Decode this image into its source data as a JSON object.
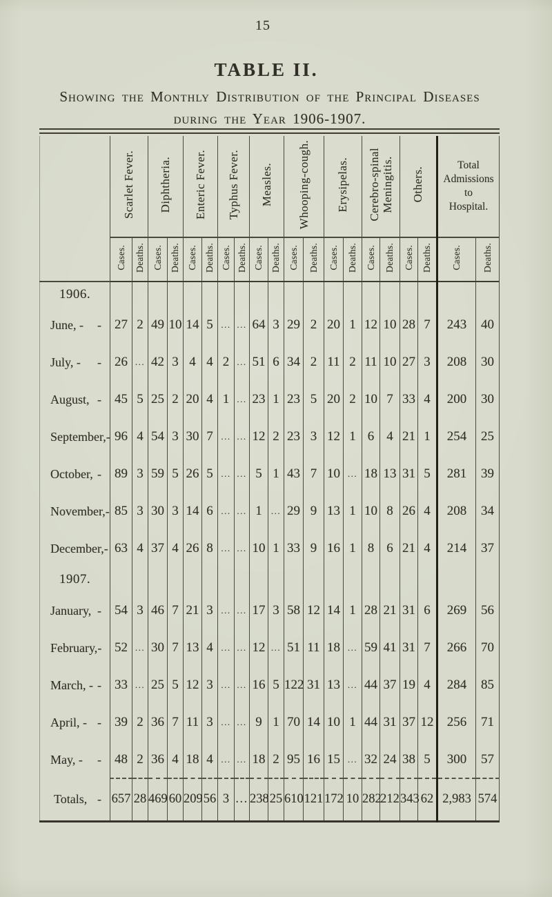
{
  "page": {
    "number": "15"
  },
  "title": "TABLE II.",
  "subtitle_line1": "Showing the Monthly Distribution of the Principal Diseases",
  "subtitle_line2": "during the Year 1906-1907.",
  "table": {
    "diseases": [
      "Scarlet Fever.",
      "Diphtheria.",
      "Enteric Fever.",
      "Typhus Fever.",
      "Measles.",
      "Whooping-cough.",
      "Erysipelas.",
      "Cerebro-spinal\nMeningitis.",
      "Others."
    ],
    "total_header": "Total\nAdmissions\nto\nHospital.",
    "sub_cases": "Cases.",
    "sub_deaths": "Deaths.",
    "row_dash": "-",
    "rows": [
      {
        "type": "section",
        "label": "1906."
      },
      {
        "type": "month",
        "label": "June, -",
        "values": [
          "27",
          "2",
          "49",
          "10",
          "14",
          "5",
          "...",
          "...",
          "64",
          "3",
          "29",
          "2",
          "20",
          "1",
          "12",
          "10",
          "28",
          "7",
          "243",
          "40"
        ]
      },
      {
        "type": "month",
        "label": "July, -",
        "values": [
          "26",
          "...",
          "42",
          "3",
          "4",
          "4",
          "2",
          "...",
          "51",
          "6",
          "34",
          "2",
          "11",
          "2",
          "11",
          "10",
          "27",
          "3",
          "208",
          "30"
        ]
      },
      {
        "type": "month",
        "label": "August,",
        "values": [
          "45",
          "5",
          "25",
          "2",
          "20",
          "4",
          "1",
          "...",
          "23",
          "1",
          "23",
          "5",
          "20",
          "2",
          "10",
          "7",
          "33",
          "4",
          "200",
          "30"
        ]
      },
      {
        "type": "month",
        "label": "September,",
        "values": [
          "96",
          "4",
          "54",
          "3",
          "30",
          "7",
          "...",
          "...",
          "12",
          "2",
          "23",
          "3",
          "12",
          "1",
          "6",
          "4",
          "21",
          "1",
          "254",
          "25"
        ]
      },
      {
        "type": "month",
        "label": "October,",
        "values": [
          "89",
          "3",
          "59",
          "5",
          "26",
          "5",
          "...",
          "...",
          "5",
          "1",
          "43",
          "7",
          "10",
          "...",
          "18",
          "13",
          "31",
          "5",
          "281",
          "39"
        ]
      },
      {
        "type": "month",
        "label": "November,",
        "values": [
          "85",
          "3",
          "30",
          "3",
          "14",
          "6",
          "...",
          "...",
          "1",
          "...",
          "29",
          "9",
          "13",
          "1",
          "10",
          "8",
          "26",
          "4",
          "208",
          "34"
        ]
      },
      {
        "type": "month",
        "label": "December,",
        "values": [
          "63",
          "4",
          "37",
          "4",
          "26",
          "8",
          "...",
          "...",
          "10",
          "1",
          "33",
          "9",
          "16",
          "1",
          "8",
          "6",
          "21",
          "4",
          "214",
          "37"
        ]
      },
      {
        "type": "section",
        "label": "1907."
      },
      {
        "type": "month",
        "label": "January,",
        "values": [
          "54",
          "3",
          "46",
          "7",
          "21",
          "3",
          "...",
          "...",
          "17",
          "3",
          "58",
          "12",
          "14",
          "1",
          "28",
          "21",
          "31",
          "6",
          "269",
          "56"
        ]
      },
      {
        "type": "month",
        "label": "February,",
        "values": [
          "52",
          "...",
          "30",
          "7",
          "13",
          "4",
          "...",
          "...",
          "12",
          "...",
          "51",
          "11",
          "18",
          "...",
          "59",
          "41",
          "31",
          "7",
          "266",
          "70"
        ]
      },
      {
        "type": "month",
        "label": "March, -",
        "values": [
          "33",
          "...",
          "25",
          "5",
          "12",
          "3",
          "...",
          "...",
          "16",
          "5",
          "122",
          "31",
          "13",
          "...",
          "44",
          "37",
          "19",
          "4",
          "284",
          "85"
        ]
      },
      {
        "type": "month",
        "label": "April, -",
        "values": [
          "39",
          "2",
          "36",
          "7",
          "11",
          "3",
          "...",
          "...",
          "9",
          "1",
          "70",
          "14",
          "10",
          "1",
          "44",
          "31",
          "37",
          "12",
          "256",
          "71"
        ]
      },
      {
        "type": "month",
        "label": "May, -",
        "values": [
          "48",
          "2",
          "36",
          "4",
          "18",
          "4",
          "...",
          "...",
          "18",
          "2",
          "95",
          "16",
          "15",
          "...",
          "32",
          "24",
          "38",
          "5",
          "300",
          "57"
        ]
      },
      {
        "type": "totals",
        "label": "Totals,",
        "values": [
          "657",
          "28",
          "469",
          "60",
          "209",
          "56",
          "3",
          "...",
          "238",
          "25",
          "610",
          "121",
          "172",
          "10",
          "282",
          "212",
          "343",
          "62",
          "2,983",
          "574"
        ]
      }
    ]
  }
}
